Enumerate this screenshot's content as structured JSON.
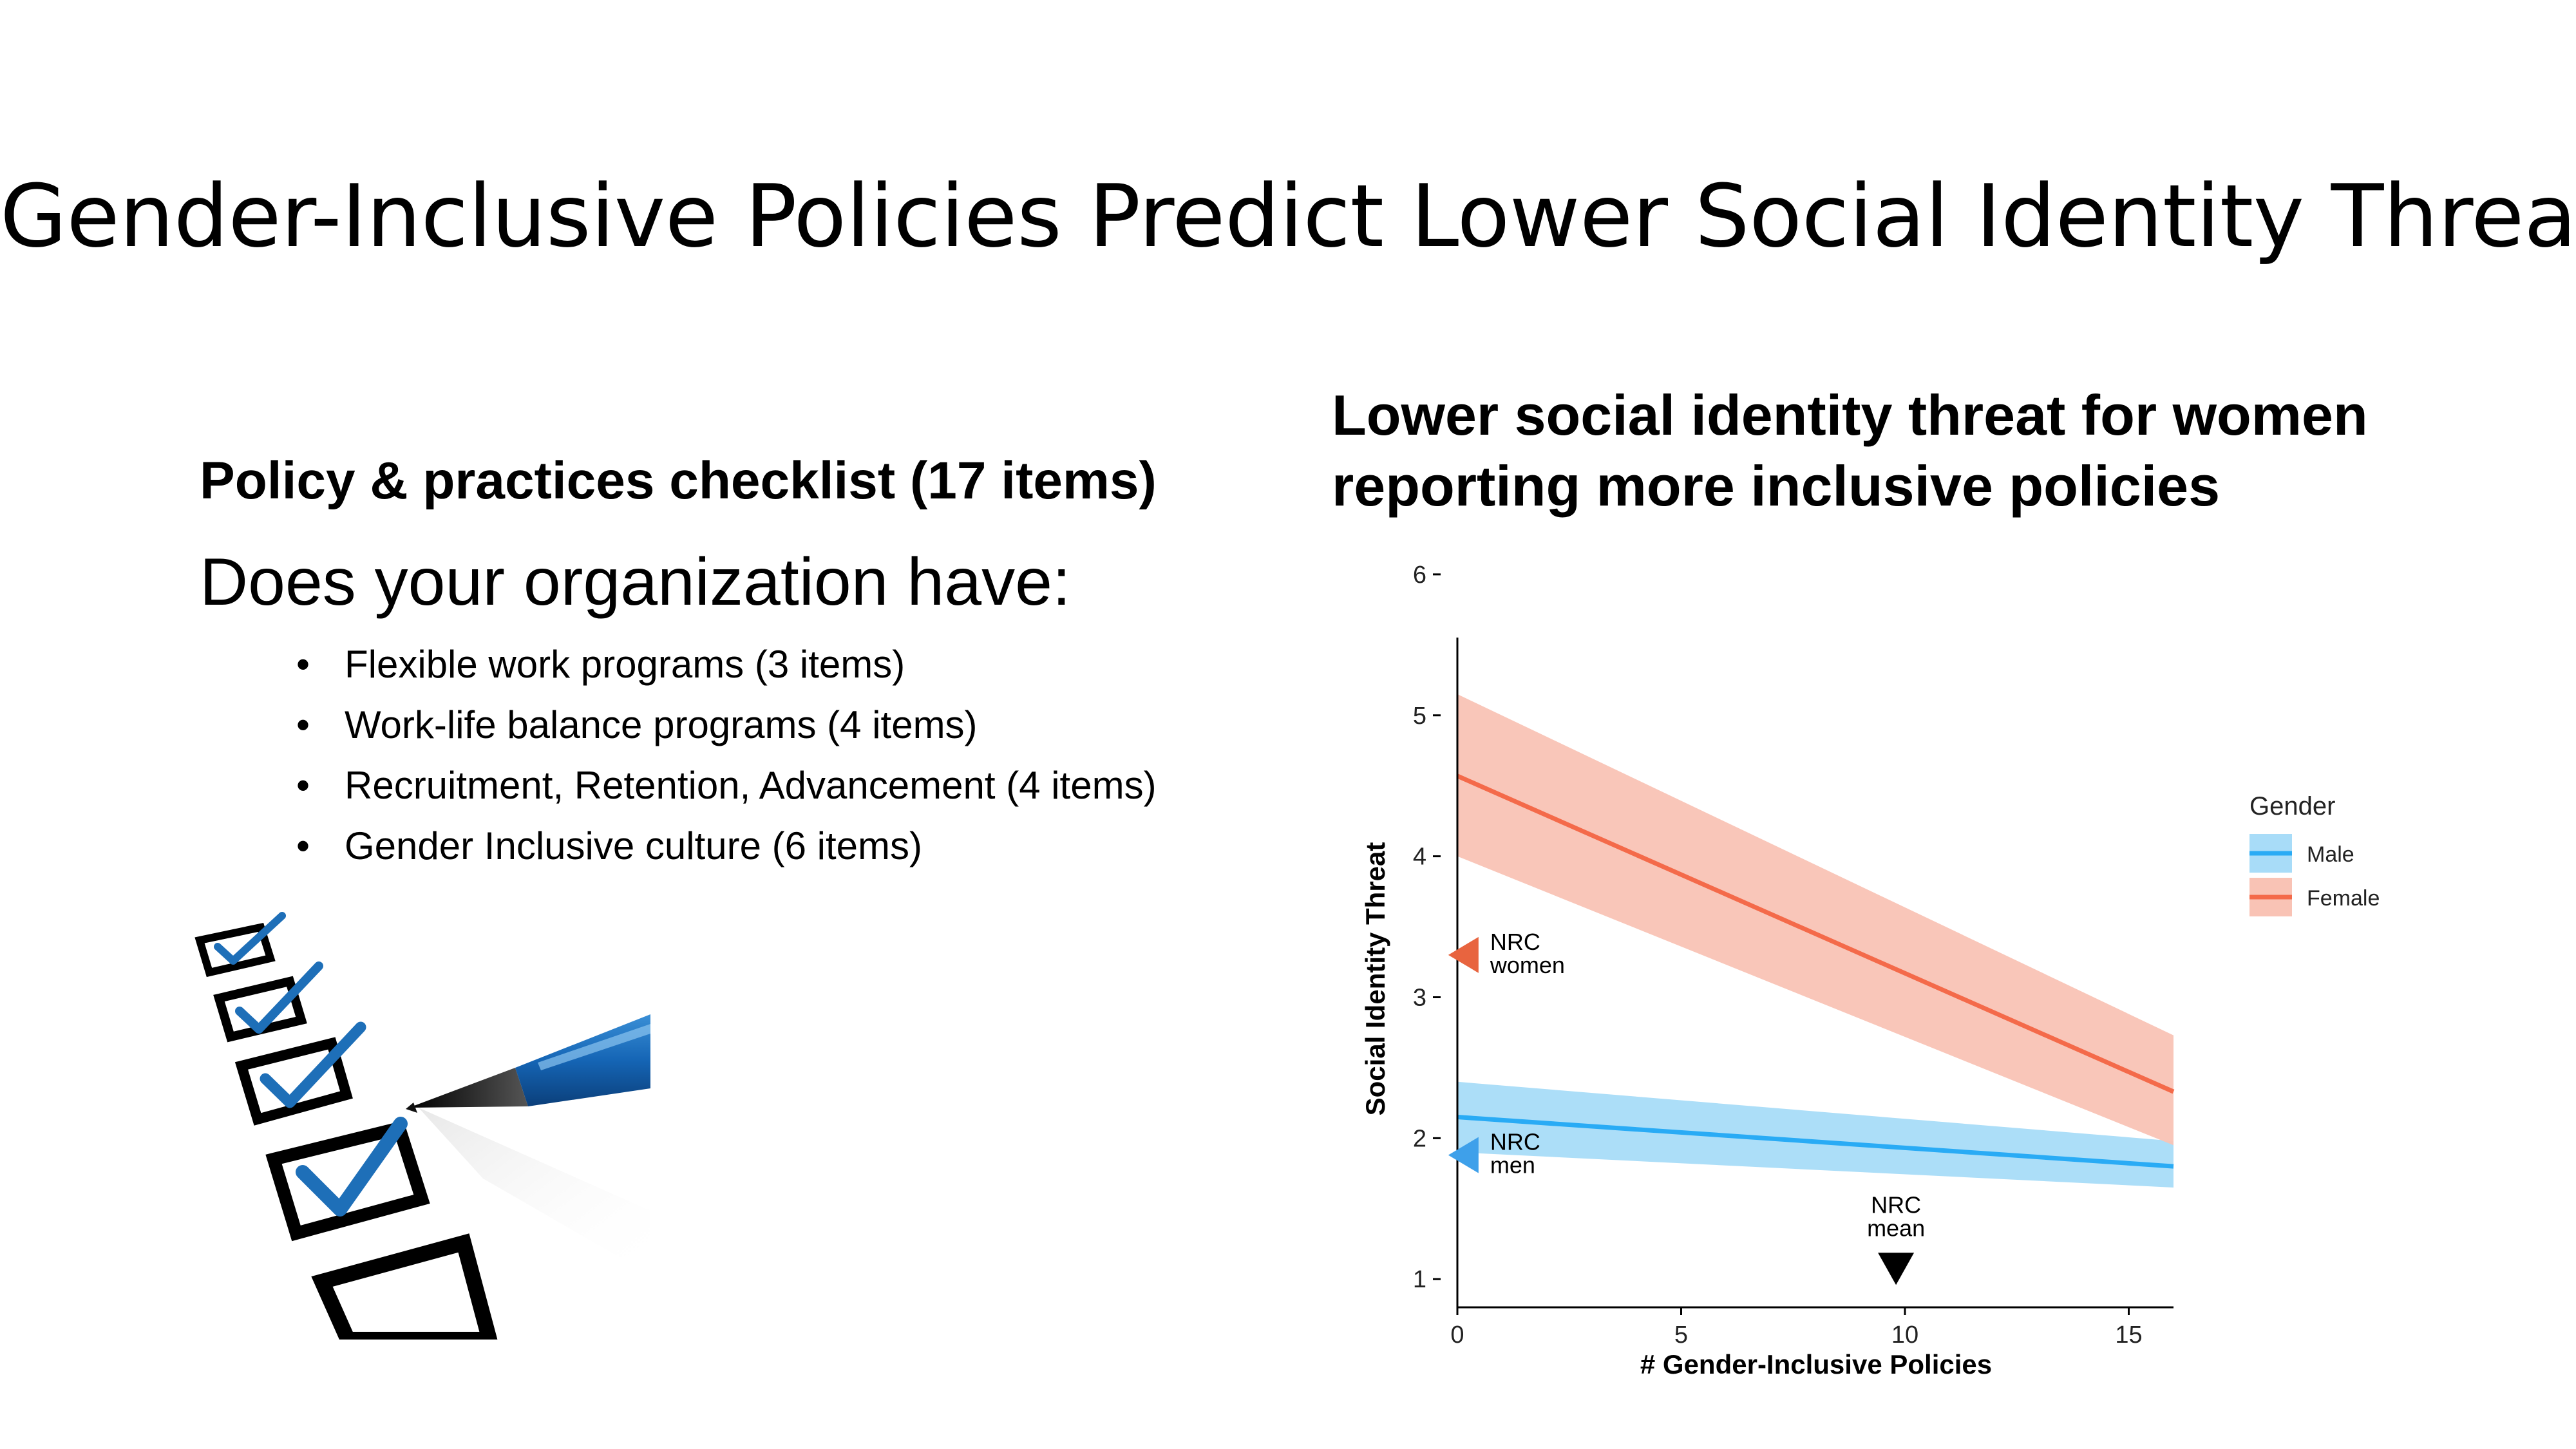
{
  "slide": {
    "title": "Gender-Inclusive Policies Predict Lower Social Identity Threat"
  },
  "left_panel": {
    "heading": "Policy & practices checklist (17 items)",
    "question": "Does your organization have:",
    "bullet": "•",
    "items": [
      "Flexible work programs (3 items)",
      "Work-life balance programs (4 items)",
      "Recruitment, Retention, Advancement (4 items)",
      "Gender Inclusive culture (6 items)"
    ],
    "image_icon": "checklist-with-pen-icon"
  },
  "chart_panel": {
    "heading_line1": "Lower social identity threat for women",
    "heading_line2": "reporting more inclusive policies"
  },
  "chart_data": {
    "type": "line",
    "xlabel": "# Gender-Inclusive Policies",
    "ylabel": "Social Identity Threat",
    "xlim": [
      0,
      16
    ],
    "ylim": [
      0.8,
      6.1
    ],
    "x_ticks": [
      0,
      5,
      10,
      15
    ],
    "y_ticks": [
      1,
      2,
      3,
      4,
      5,
      6
    ],
    "grid": false,
    "legend": {
      "title": "Gender",
      "placement": "right"
    },
    "series": [
      {
        "name": "Male",
        "color": "#29abf5",
        "band_color": "#a8dcf8",
        "x": [
          0,
          16
        ],
        "y": [
          2.15,
          1.8
        ],
        "ci_lower": [
          1.9,
          1.65
        ],
        "ci_upper": [
          2.4,
          1.98
        ]
      },
      {
        "name": "Female",
        "color": "#f46a4a",
        "band_color": "#f9c3b5",
        "x": [
          0,
          16
        ],
        "y": [
          4.57,
          2.33
        ],
        "ci_lower": [
          4.0,
          1.95
        ],
        "ci_upper": [
          5.15,
          2.73
        ]
      }
    ],
    "annotations": [
      {
        "id": "nrc-women",
        "line1": "NRC",
        "line2": "women",
        "x": 0.3,
        "y": 3.3,
        "marker": "left-triangle",
        "color": "#e8643f"
      },
      {
        "id": "nrc-men",
        "line1": "NRC",
        "line2": "men",
        "x": 0.3,
        "y": 1.88,
        "marker": "left-triangle",
        "color": "#3ea0ea"
      },
      {
        "id": "nrc-mean",
        "line1": "NRC",
        "line2": "mean",
        "x": 9.8,
        "y": 1.05,
        "marker": "down-triangle",
        "color": "#000000"
      }
    ]
  }
}
